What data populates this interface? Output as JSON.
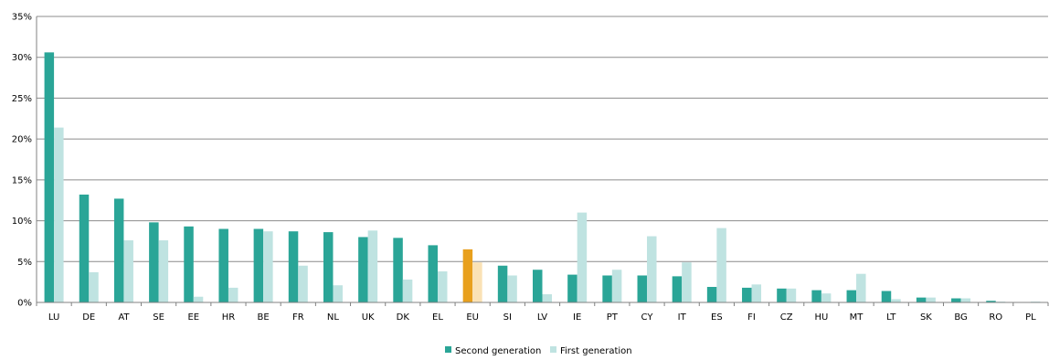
{
  "chart_data": {
    "type": "bar",
    "categories": [
      "LU",
      "DE",
      "AT",
      "SE",
      "EE",
      "HR",
      "BE",
      "FR",
      "NL",
      "UK",
      "DK",
      "EL",
      "EU",
      "SI",
      "LV",
      "IE",
      "PT",
      "CY",
      "IT",
      "ES",
      "FI",
      "CZ",
      "HU",
      "MT",
      "LT",
      "SK",
      "BG",
      "RO",
      "PL"
    ],
    "series": [
      {
        "name": "Second generation",
        "values": [
          30.6,
          13.2,
          12.7,
          9.8,
          9.3,
          9.0,
          9.0,
          8.7,
          8.6,
          8.0,
          7.9,
          7.0,
          6.5,
          4.5,
          4.0,
          3.4,
          3.3,
          3.3,
          3.2,
          1.9,
          1.8,
          1.7,
          1.5,
          1.5,
          1.4,
          0.6,
          0.5,
          0.2,
          0.0
        ]
      },
      {
        "name": "First generation",
        "values": [
          21.4,
          3.7,
          7.6,
          7.6,
          0.7,
          1.8,
          8.7,
          4.5,
          2.1,
          8.8,
          2.8,
          3.8,
          4.9,
          3.3,
          1.0,
          11.0,
          4.0,
          8.1,
          4.9,
          9.1,
          2.2,
          1.7,
          1.1,
          3.5,
          0.4,
          0.6,
          0.5,
          0.1,
          0.1
        ]
      }
    ],
    "highlight_category": "EU",
    "y_ticks": [
      "0%",
      "5%",
      "10%",
      "15%",
      "20%",
      "25%",
      "30%",
      "35%"
    ],
    "ylim": [
      0,
      35
    ],
    "grid": true,
    "legend_position": "bottom",
    "colors": {
      "second": "#2aa597",
      "first": "#bfe3e1",
      "second_highlight": "#e8a01d",
      "first_highlight": "#fae2b5",
      "grid": "#8c8c8c",
      "axis": "#808080"
    }
  }
}
